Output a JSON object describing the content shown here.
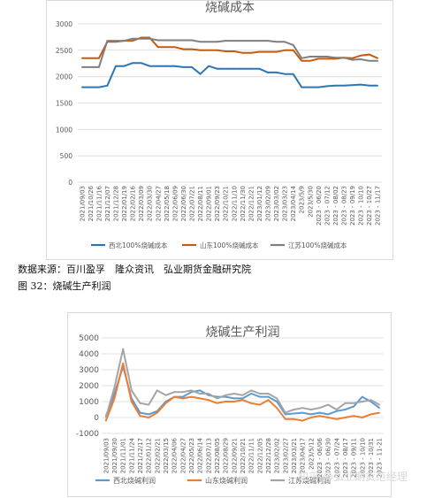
{
  "source_text": "数据来源：百川盈孚　隆众资讯　弘业期货金融研究院",
  "figure_caption": "图 32：烧碱生产利润",
  "watermark": "知乎 @弘业期货范经理",
  "chart_data": [
    {
      "type": "line",
      "title": "烧碱成本",
      "ylim": [
        0,
        3000
      ],
      "yticks": [
        0,
        500,
        1000,
        1500,
        2000,
        2500,
        3000
      ],
      "grid": true,
      "legend_position": "bottom",
      "x": [
        "2021/09/03",
        "2021/10/26",
        "2021/11/16",
        "2021/12/07",
        "2021/12/28",
        "2022/01/19",
        "2022/02/16",
        "2022/03/09",
        "2022/03/30",
        "2022/04/27",
        "2022/05/18",
        "2022/06/09",
        "2022/06/30",
        "2022/07/21",
        "2022/08/11",
        "2022/09/01",
        "2022/09/23",
        "2022/10/21",
        "2022/11/10",
        "2022/11/30",
        "2022/12/21",
        "2023/01/12",
        "2023/02/09",
        "2023/03/02",
        "2023/03/23",
        "2023/04/14",
        "2023/5/9",
        "2023/5/30",
        "2023 - 06/20",
        "2023 - 07/12",
        "2023 - 08/02",
        "2023 - 08/23",
        "2023 - 09/19",
        "2023 - 10/10",
        "2023 - 10/27",
        "2023 - 11/17"
      ],
      "series": [
        {
          "name": "西北100%烧碱成本",
          "color": "#2e75b6",
          "values": [
            1800,
            1800,
            1800,
            1830,
            2200,
            2200,
            2260,
            2260,
            2200,
            2200,
            2200,
            2200,
            2180,
            2180,
            2050,
            2200,
            2150,
            2150,
            2150,
            2150,
            2150,
            2150,
            2080,
            2080,
            2050,
            2050,
            1800,
            1800,
            1800,
            1820,
            1830,
            1830,
            1840,
            1850,
            1830,
            1830
          ]
        },
        {
          "name": "山东100%烧碱成本",
          "color": "#c55a11",
          "values": [
            2350,
            2350,
            2350,
            2660,
            2660,
            2680,
            2680,
            2740,
            2740,
            2560,
            2560,
            2560,
            2520,
            2520,
            2500,
            2500,
            2500,
            2480,
            2480,
            2450,
            2450,
            2470,
            2470,
            2470,
            2500,
            2500,
            2300,
            2300,
            2340,
            2340,
            2340,
            2360,
            2350,
            2400,
            2420,
            2350
          ]
        },
        {
          "name": "江苏100%烧碱成本",
          "color": "#7f7f7f",
          "values": [
            2180,
            2180,
            2180,
            2680,
            2680,
            2680,
            2720,
            2720,
            2720,
            2690,
            2690,
            2690,
            2690,
            2690,
            2660,
            2660,
            2660,
            2680,
            2680,
            2680,
            2680,
            2680,
            2680,
            2660,
            2660,
            2600,
            2350,
            2380,
            2380,
            2380,
            2360,
            2360,
            2320,
            2330,
            2300,
            2300
          ]
        }
      ]
    },
    {
      "type": "line",
      "title": "烧碱生产利润",
      "ylim": [
        -1000,
        5000
      ],
      "yticks": [
        -1000,
        0,
        1000,
        2000,
        3000,
        4000,
        5000
      ],
      "grid": true,
      "legend_position": "bottom",
      "x": [
        "2021/09/03",
        "2021/09/30",
        "2021/11/01",
        "2021/11/24",
        "2021/12/17",
        "2022/01/12",
        "2022/02/21",
        "2022/03/15",
        "2022/04/06",
        "2022/04/27",
        "2022/05/23",
        "2022/06/14",
        "2022/07/13",
        "2022/08/05",
        "2022/08/29",
        "2022/09/21",
        "2022/10/21",
        "2022/11/11",
        "2022/12/05",
        "2022/12/28",
        "2023/02/02",
        "2023/02/27",
        "2023/03/21",
        "2023/04/17",
        "2023/5/12",
        "2023 - 06/06",
        "2023 - 06/30",
        "2023 - 07/24",
        "2023 - 08/17",
        "2023 - 09/11",
        "2023 - 10/10",
        "2023 - 10/31",
        "2023 - 11-21"
      ],
      "series": [
        {
          "name": "西北烧碱利润",
          "color": "#5b9bd5",
          "values": [
            100,
            1500,
            3200,
            1200,
            300,
            200,
            400,
            1000,
            1300,
            1300,
            1600,
            1700,
            1400,
            1300,
            1300,
            1200,
            1200,
            1500,
            1300,
            1300,
            1000,
            200,
            250,
            300,
            200,
            300,
            200,
            400,
            500,
            700,
            1300,
            1000,
            600
          ]
        },
        {
          "name": "山东烧碱利润",
          "color": "#ed7d31",
          "values": [
            -200,
            1200,
            3400,
            1000,
            100,
            0,
            300,
            900,
            1300,
            1200,
            1300,
            1200,
            1100,
            900,
            1000,
            1000,
            1100,
            900,
            800,
            1100,
            600,
            -100,
            -100,
            -200,
            0,
            100,
            0,
            -100,
            0,
            100,
            0,
            200,
            300
          ]
        },
        {
          "name": "江苏烧碱利润",
          "color": "#a5a5a5",
          "values": [
            0,
            1900,
            4300,
            1700,
            900,
            800,
            1700,
            1400,
            1600,
            1600,
            1700,
            1500,
            1500,
            1200,
            1400,
            1500,
            1400,
            1700,
            1500,
            1500,
            1200,
            300,
            500,
            600,
            500,
            600,
            800,
            500,
            900,
            900,
            1000,
            1100,
            800
          ]
        }
      ]
    }
  ]
}
